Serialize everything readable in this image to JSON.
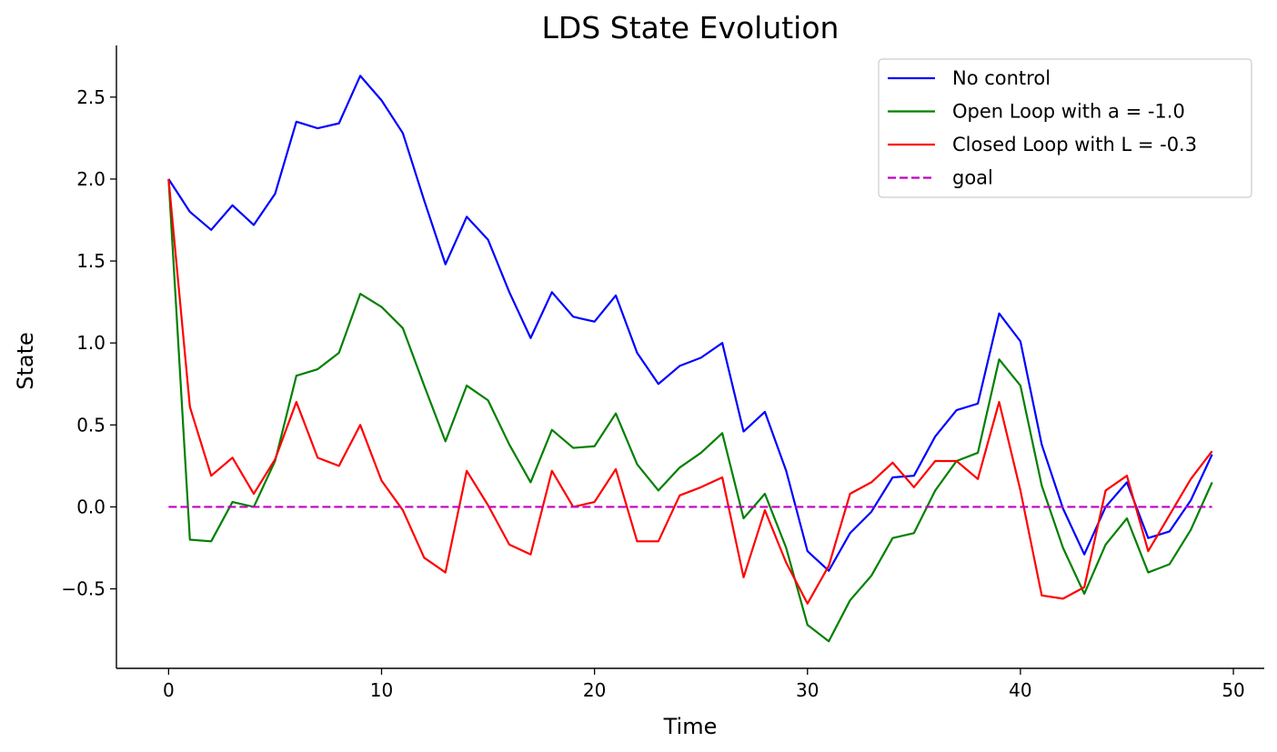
{
  "chart_data": {
    "type": "line",
    "title": "LDS State Evolution",
    "xlabel": "Time",
    "ylabel": "State",
    "xlim": [
      -2.45,
      51.45
    ],
    "ylim": [
      -0.985,
      2.815
    ],
    "xticks": [
      0,
      10,
      20,
      30,
      40,
      50
    ],
    "xtick_labels": [
      "0",
      "10",
      "20",
      "30",
      "40",
      "50"
    ],
    "yticks": [
      -0.5,
      0.0,
      0.5,
      1.0,
      1.5,
      2.0,
      2.5
    ],
    "ytick_labels": [
      "−0.5",
      "0.0",
      "0.5",
      "1.0",
      "1.5",
      "2.0",
      "2.5"
    ],
    "grid": false,
    "legend_position": "top-right",
    "x": [
      0,
      1,
      2,
      3,
      4,
      5,
      6,
      7,
      8,
      9,
      10,
      11,
      12,
      13,
      14,
      15,
      16,
      17,
      18,
      19,
      20,
      21,
      22,
      23,
      24,
      25,
      26,
      27,
      28,
      29,
      30,
      31,
      32,
      33,
      34,
      35,
      36,
      37,
      38,
      39,
      40,
      41,
      42,
      43,
      44,
      45,
      46,
      47,
      48,
      49
    ],
    "series": [
      {
        "name": "No control",
        "color": "#0000ff",
        "style": "solid",
        "values": [
          2.0,
          1.8,
          1.69,
          1.84,
          1.72,
          1.91,
          2.35,
          2.31,
          2.34,
          2.63,
          2.48,
          2.28,
          1.87,
          1.48,
          1.77,
          1.63,
          1.31,
          1.03,
          1.31,
          1.16,
          1.13,
          1.29,
          0.94,
          0.75,
          0.86,
          0.91,
          1.0,
          0.46,
          0.58,
          0.22,
          -0.27,
          -0.39,
          -0.16,
          -0.03,
          0.18,
          0.19,
          0.43,
          0.59,
          0.63,
          1.18,
          1.01,
          0.38,
          -0.01,
          -0.29,
          0.0,
          0.15,
          -0.19,
          -0.15,
          0.04,
          0.32
        ]
      },
      {
        "name": "Open Loop with a = -1.0",
        "color": "#008000",
        "style": "solid",
        "values": [
          2.0,
          -0.2,
          -0.21,
          0.03,
          0.0,
          0.28,
          0.8,
          0.84,
          0.94,
          1.3,
          1.22,
          1.09,
          0.74,
          0.4,
          0.74,
          0.65,
          0.38,
          0.15,
          0.47,
          0.36,
          0.37,
          0.57,
          0.26,
          0.1,
          0.24,
          0.33,
          0.45,
          -0.07,
          0.08,
          -0.25,
          -0.72,
          -0.82,
          -0.57,
          -0.42,
          -0.19,
          -0.16,
          0.1,
          0.28,
          0.33,
          0.9,
          0.74,
          0.13,
          -0.25,
          -0.53,
          -0.23,
          -0.07,
          -0.4,
          -0.35,
          -0.14,
          0.15
        ]
      },
      {
        "name": "Closed Loop with L = -0.3",
        "color": "#ff0000",
        "style": "solid",
        "values": [
          2.0,
          0.61,
          0.19,
          0.3,
          0.08,
          0.29,
          0.64,
          0.3,
          0.25,
          0.5,
          0.16,
          -0.02,
          -0.31,
          -0.4,
          0.22,
          0.01,
          -0.23,
          -0.29,
          0.22,
          0.0,
          0.03,
          0.23,
          -0.21,
          -0.21,
          0.07,
          0.12,
          0.18,
          -0.43,
          -0.02,
          -0.34,
          -0.59,
          -0.36,
          0.08,
          0.15,
          0.27,
          0.12,
          0.28,
          0.28,
          0.17,
          0.64,
          0.1,
          -0.54,
          -0.56,
          -0.49,
          0.1,
          0.19,
          -0.27,
          -0.05,
          0.17,
          0.34
        ]
      },
      {
        "name": "goal",
        "color": "#bf00bf",
        "style": "dashed",
        "values": [
          0,
          0,
          0,
          0,
          0,
          0,
          0,
          0,
          0,
          0,
          0,
          0,
          0,
          0,
          0,
          0,
          0,
          0,
          0,
          0,
          0,
          0,
          0,
          0,
          0,
          0,
          0,
          0,
          0,
          0,
          0,
          0,
          0,
          0,
          0,
          0,
          0,
          0,
          0,
          0,
          0,
          0,
          0,
          0,
          0,
          0,
          0,
          0,
          0,
          0
        ]
      }
    ]
  }
}
